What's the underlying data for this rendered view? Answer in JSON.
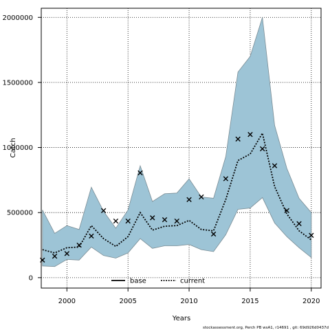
{
  "chart_data": {
    "type": "line",
    "xlabel": "Years",
    "ylabel": "Catch",
    "xlim": [
      1997.9,
      2020.8
    ],
    "ylim": [
      -80000,
      2070000
    ],
    "xticks": [
      2000,
      2005,
      2010,
      2015,
      2020
    ],
    "yticks": [
      0,
      500000,
      1000000,
      1500000,
      2000000
    ],
    "grid": true,
    "legend_position": "bottom-center",
    "colors": {
      "band_fill": "#9dc4d6",
      "band_stroke": "#7a8c94",
      "line": "#000000",
      "points": "#000000"
    },
    "legend": {
      "entries": [
        {
          "label": "base",
          "style": "solid"
        },
        {
          "label": "current",
          "style": "dotted"
        }
      ]
    },
    "footer": "stockassessment.org, Perch PB wsA1, r14691 , git: 69d926d0437d",
    "x": [
      1998,
      1999,
      2000,
      2001,
      2002,
      2003,
      2004,
      2005,
      2006,
      2007,
      2008,
      2009,
      2010,
      2011,
      2012,
      2013,
      2014,
      2015,
      2016,
      2017,
      2018,
      2019,
      2020
    ],
    "series": [
      {
        "name": "current",
        "values": [
          215000,
          190000,
          230000,
          235000,
          400000,
          300000,
          240000,
          315000,
          500000,
          365000,
          395000,
          400000,
          440000,
          370000,
          360000,
          600000,
          900000,
          950000,
          1110000,
          700000,
          490000,
          360000,
          290000
        ]
      }
    ],
    "band_upper": [
      520000,
      340000,
      400000,
      370000,
      695000,
      510000,
      380000,
      520000,
      860000,
      585000,
      645000,
      650000,
      760000,
      620000,
      610000,
      930000,
      1580000,
      1700000,
      2000000,
      1170000,
      840000,
      610000,
      500000
    ],
    "band_lower": [
      90000,
      85000,
      140000,
      135000,
      235000,
      170000,
      150000,
      190000,
      300000,
      225000,
      245000,
      245000,
      255000,
      215000,
      200000,
      330000,
      525000,
      535000,
      615000,
      420000,
      315000,
      230000,
      155000
    ],
    "observed": [
      135000,
      165000,
      185000,
      250000,
      320000,
      515000,
      435000,
      435000,
      805000,
      460000,
      445000,
      435000,
      600000,
      620000,
      335000,
      760000,
      1065000,
      1100000,
      990000,
      860000,
      515000,
      415000,
      325000
    ]
  }
}
